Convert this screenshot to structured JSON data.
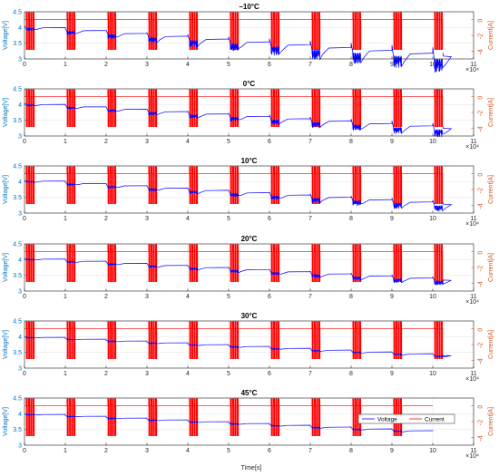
{
  "figure": {
    "xlabel": "Time[s]",
    "xlabel_exponent": "×10⁴",
    "colors": {
      "voltage": "#0000FF",
      "current": "#FF0000",
      "left_axis": "#0072BD",
      "right_axis": "#D95319",
      "axes": "#262626",
      "grid": "#E6E6E6"
    }
  },
  "chart_data": [
    {
      "type": "line",
      "title": "−10°C",
      "x_ticks": [
        0,
        1,
        2,
        3,
        4,
        5,
        6,
        7,
        8,
        9,
        10,
        11
      ],
      "xlim": [
        0,
        11
      ],
      "x_unit_scale": 10000,
      "ylabel": "Voltage[V]",
      "ylim": [
        3,
        4.5
      ],
      "y_ticks": [
        "3",
        "3.5",
        "4",
        "4.5"
      ],
      "y2label": "Current[A]",
      "y2lim": [
        -5,
        1
      ],
      "y2_ticks": [
        "0",
        "-2",
        "-4"
      ],
      "grid": true,
      "series": [
        {
          "name": "Voltage",
          "axis": "left",
          "x_end": 10.25,
          "v_start": 4.05,
          "v_end": 3.3,
          "v_dip_first": 0.1,
          "v_dip_last": 0.55,
          "v_notch_first": 0.05,
          "v_notch_last": 0.25,
          "v_last": 3.2
        },
        {
          "name": "Current",
          "axis": "right",
          "x_end": 10.25,
          "rest": 0,
          "pulse_high": 0.9,
          "pulse_low": -3.8
        }
      ]
    },
    {
      "type": "line",
      "title": "0°C",
      "x_ticks": [
        0,
        1,
        2,
        3,
        4,
        5,
        6,
        7,
        8,
        9,
        10,
        11
      ],
      "xlim": [
        0,
        11
      ],
      "x_unit_scale": 10000,
      "ylabel": "Voltage[V]",
      "ylim": [
        3,
        4.5
      ],
      "y_ticks": [
        "3",
        "3.5",
        "4",
        "4.5"
      ],
      "y2label": "Current[A]",
      "y2lim": [
        -5,
        1
      ],
      "y2_ticks": [
        "0",
        "-2",
        "-4"
      ],
      "grid": true,
      "series": [
        {
          "name": "Voltage",
          "axis": "left",
          "x_end": 10.25,
          "v_start": 4.05,
          "v_end": 3.35,
          "v_dip_first": 0.06,
          "v_dip_last": 0.3,
          "v_notch_first": 0.04,
          "v_notch_last": 0.15,
          "v_last": 3.3
        },
        {
          "name": "Current",
          "axis": "right",
          "x_end": 10.25,
          "rest": 0,
          "pulse_high": 0.9,
          "pulse_low": -3.8
        }
      ]
    },
    {
      "type": "line",
      "title": "10°C",
      "x_ticks": [
        0,
        1,
        2,
        3,
        4,
        5,
        6,
        7,
        8,
        9,
        10,
        11
      ],
      "xlim": [
        0,
        11
      ],
      "x_unit_scale": 10000,
      "ylabel": "Voltage[V]",
      "ylim": [
        3,
        4.5
      ],
      "y_ticks": [
        "3",
        "3.5",
        "4",
        "4.5"
      ],
      "y2label": "Current[A]",
      "y2lim": [
        -5,
        1
      ],
      "y2_ticks": [
        "0",
        "-2",
        "-4"
      ],
      "grid": true,
      "series": [
        {
          "name": "Voltage",
          "axis": "left",
          "x_end": 10.25,
          "v_start": 4.05,
          "v_end": 3.35,
          "v_dip_first": 0.05,
          "v_dip_last": 0.25,
          "v_notch_first": 0.03,
          "v_notch_last": 0.12,
          "v_last": 3.35
        },
        {
          "name": "Current",
          "axis": "right",
          "x_end": 10.25,
          "rest": 0,
          "pulse_high": 0.9,
          "pulse_low": -3.8
        }
      ]
    },
    {
      "type": "line",
      "title": "20°C",
      "x_ticks": [
        0,
        1,
        2,
        3,
        4,
        5,
        6,
        7,
        8,
        9,
        10,
        11
      ],
      "xlim": [
        0,
        11
      ],
      "x_unit_scale": 10000,
      "ylabel": "Voltage[V]",
      "ylim": [
        3,
        4.5
      ],
      "y_ticks": [
        "3",
        "3.5",
        "4",
        "4.5"
      ],
      "y2label": "Current[A]",
      "y2lim": [
        -5,
        1
      ],
      "y2_ticks": [
        "0",
        "-2",
        "-4"
      ],
      "grid": true,
      "series": [
        {
          "name": "Voltage",
          "axis": "left",
          "x_end": 10.25,
          "v_start": 4.05,
          "v_end": 3.4,
          "v_dip_first": 0.04,
          "v_dip_last": 0.18,
          "v_notch_first": 0.03,
          "v_notch_last": 0.1,
          "v_last": 3.2
        },
        {
          "name": "Current",
          "axis": "right",
          "x_end": 10.25,
          "rest": 0,
          "pulse_high": 0.9,
          "pulse_low": -3.8
        }
      ]
    },
    {
      "type": "line",
      "title": "30°C",
      "x_ticks": [
        0,
        1,
        2,
        3,
        4,
        5,
        6,
        7,
        8,
        9,
        10,
        11
      ],
      "xlim": [
        0,
        11
      ],
      "x_unit_scale": 10000,
      "ylabel": "Voltage[V]",
      "ylim": [
        3,
        4.5
      ],
      "y_ticks": [
        "3",
        "3.5",
        "4",
        "4.5"
      ],
      "y2label": "Current[A]",
      "y2lim": [
        -5,
        1
      ],
      "y2_ticks": [
        "0",
        "-2",
        "-4"
      ],
      "grid": true,
      "series": [
        {
          "name": "Voltage",
          "axis": "left",
          "x_end": 10.25,
          "v_start": 4.0,
          "v_end": 3.4,
          "v_dip_first": 0.02,
          "v_dip_last": 0.06,
          "v_notch_first": 0.02,
          "v_notch_last": 0.05,
          "v_last": 3.35
        },
        {
          "name": "Current",
          "axis": "right",
          "x_end": 10.25,
          "rest": 0,
          "pulse_high": 0.9,
          "pulse_low": -3.8
        }
      ]
    },
    {
      "type": "line",
      "title": "45°C",
      "x_ticks": [
        0,
        1,
        2,
        3,
        4,
        5,
        6,
        7,
        8,
        9,
        10,
        11
      ],
      "xlim": [
        0,
        11
      ],
      "x_unit_scale": 10000,
      "ylabel": "Voltage[V]",
      "ylim": [
        3,
        4.5
      ],
      "y_ticks": [
        "3",
        "3.5",
        "4",
        "4.5"
      ],
      "y2label": "Current[A]",
      "y2lim": [
        -5,
        1
      ],
      "y2_ticks": [
        "0",
        "-2",
        "-4"
      ],
      "grid": true,
      "legend": "right",
      "legend_entries": [
        "Voltage",
        "Current"
      ],
      "series": [
        {
          "name": "Voltage",
          "axis": "left",
          "x_end": 10.0,
          "v_start": 4.0,
          "v_end": 3.45,
          "v_dip_first": 0.02,
          "v_dip_last": 0.05,
          "v_notch_first": 0.02,
          "v_notch_last": 0.04,
          "v_last": 3.45
        },
        {
          "name": "Current",
          "axis": "right",
          "x_end": 10.0,
          "rest": 0,
          "pulse_high": 0.9,
          "pulse_low": -3.8
        }
      ]
    }
  ]
}
